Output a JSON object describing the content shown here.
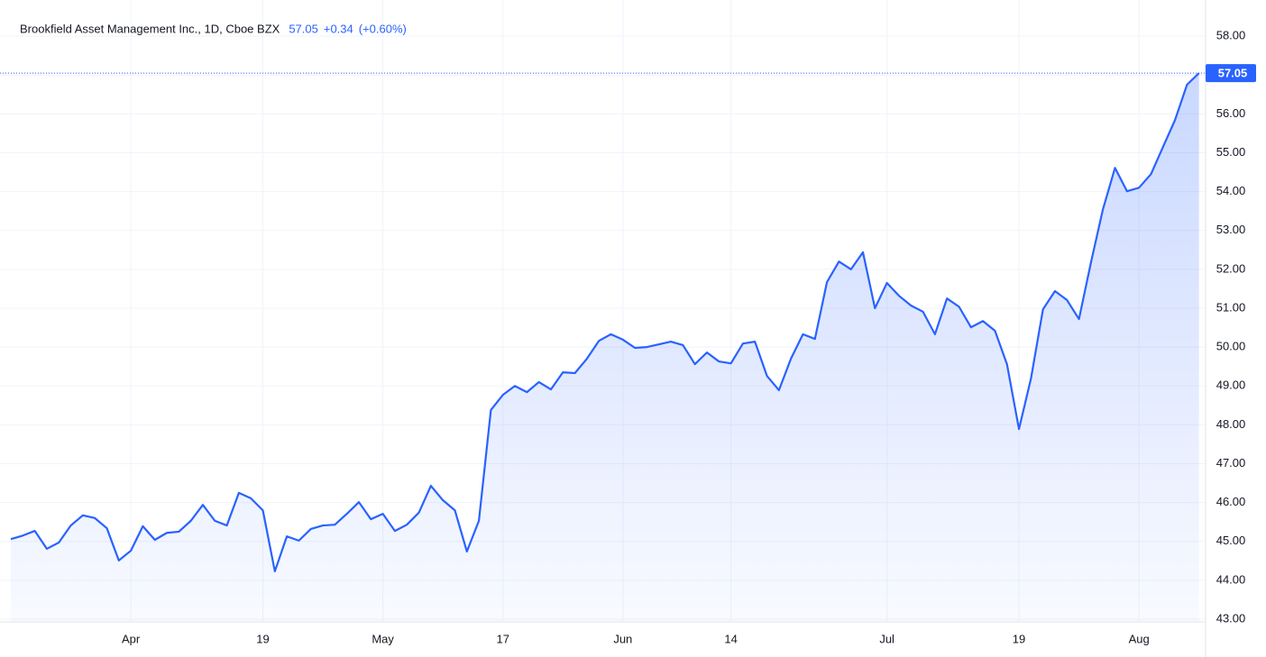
{
  "chart_data": {
    "type": "area",
    "title": "Brookfield Asset Management Inc., 1D, Cboe BZX",
    "last": "57.05",
    "change": "+0.34",
    "change_percent": "(+0.60%)",
    "color": "#2962ff",
    "grid": true,
    "categories": [
      null,
      null,
      null,
      null,
      null,
      null,
      null,
      null,
      null,
      null,
      "Apr",
      null,
      null,
      null,
      null,
      null,
      null,
      null,
      null,
      null,
      null,
      "19",
      null,
      null,
      null,
      null,
      null,
      null,
      null,
      null,
      null,
      "May",
      null,
      null,
      null,
      null,
      null,
      null,
      null,
      null,
      null,
      "17",
      null,
      null,
      null,
      null,
      null,
      null,
      null,
      null,
      null,
      "Jun",
      null,
      null,
      null,
      null,
      null,
      null,
      null,
      null,
      "14",
      null,
      null,
      null,
      null,
      null,
      null,
      null,
      null,
      null,
      null,
      null,
      null,
      "Jul",
      null,
      null,
      null,
      null,
      null,
      null,
      null,
      null,
      null,
      null,
      "19",
      null,
      null,
      null,
      null,
      null,
      null,
      null,
      null,
      null,
      "Aug",
      null,
      null,
      null,
      null,
      null
    ],
    "values": [
      45.06,
      45.15,
      45.27,
      44.81,
      44.97,
      45.41,
      45.67,
      45.6,
      45.34,
      44.51,
      44.76,
      45.39,
      45.04,
      45.22,
      45.25,
      45.53,
      45.94,
      45.53,
      45.41,
      46.25,
      46.11,
      45.8,
      44.23,
      45.13,
      45.02,
      45.32,
      45.41,
      45.43,
      45.71,
      46.01,
      45.57,
      45.71,
      45.27,
      45.43,
      45.74,
      46.43,
      46.06,
      45.8,
      44.74,
      45.53,
      48.38,
      48.77,
      49.0,
      48.84,
      49.1,
      48.91,
      49.35,
      49.33,
      49.7,
      50.16,
      50.33,
      50.19,
      49.98,
      50.0,
      50.07,
      50.14,
      50.05,
      49.56,
      49.86,
      49.63,
      49.58,
      50.09,
      50.14,
      49.26,
      48.89,
      49.7,
      50.33,
      50.21,
      51.67,
      52.2,
      52.0,
      52.44,
      51.0,
      51.65,
      51.32,
      51.07,
      50.91,
      50.33,
      51.25,
      51.04,
      50.51,
      50.67,
      50.42,
      49.56,
      47.89,
      49.19,
      50.97,
      51.44,
      51.21,
      50.72,
      52.18,
      53.55,
      54.61,
      54.01,
      54.1,
      54.45,
      55.15,
      55.84,
      56.75,
      57.05
    ],
    "ylim": [
      42.93,
      58.93
    ],
    "yticks": [
      {
        "value": 43,
        "label": "43.00"
      },
      {
        "value": 44,
        "label": "44.00"
      },
      {
        "value": 45,
        "label": "45.00"
      },
      {
        "value": 46,
        "label": "46.00"
      },
      {
        "value": 47,
        "label": "47.00"
      },
      {
        "value": 48,
        "label": "48.00"
      },
      {
        "value": 49,
        "label": "49.00"
      },
      {
        "value": 50,
        "label": "50.00"
      },
      {
        "value": 51,
        "label": "51.00"
      },
      {
        "value": 52,
        "label": "52.00"
      },
      {
        "value": 53,
        "label": "53.00"
      },
      {
        "value": 54,
        "label": "54.00"
      },
      {
        "value": 55,
        "label": "55.00"
      },
      {
        "value": 56,
        "label": "56.00"
      },
      {
        "value": 57,
        "label": "57.00"
      },
      {
        "value": 58,
        "label": "58.00"
      }
    ]
  }
}
